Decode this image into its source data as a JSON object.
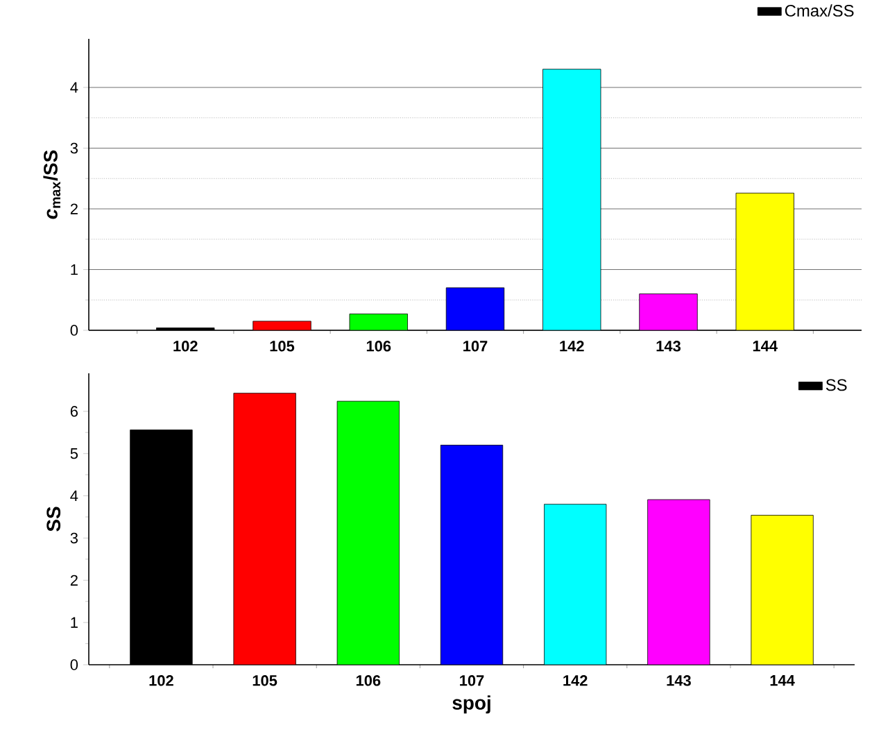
{
  "chart_data": [
    {
      "type": "bar",
      "categories": [
        "102",
        "105",
        "106",
        "107",
        "142",
        "143",
        "144"
      ],
      "ylabel": "*c*$_{max}$/SS",
      "ylim": [
        0,
        4.8
      ],
      "yticks": [
        0,
        1,
        2,
        3,
        4
      ],
      "grid": "y",
      "legend": "top right",
      "series": [
        {
          "name": "Cmax/SS",
          "colors": [
            "#000000",
            "#ff0000",
            "#00ff00",
            "#0000ff",
            "#00ffff",
            "#ff00ff",
            "#ffff00"
          ],
          "values": [
            0.04,
            0.15,
            0.27,
            0.7,
            4.3,
            0.6,
            2.26
          ]
        }
      ]
    },
    {
      "type": "bar",
      "categories": [
        "102",
        "105",
        "106",
        "107",
        "142",
        "143",
        "144"
      ],
      "xlabel": "spoj",
      "ylabel": "SS",
      "ylim": [
        0,
        6.9
      ],
      "yticks": [
        0,
        1,
        2,
        3,
        4,
        5,
        6
      ],
      "legend": "top right",
      "series": [
        {
          "name": "SS",
          "colors": [
            "#000000",
            "#ff0000",
            "#00ff00",
            "#0000ff",
            "#00ffff",
            "#ff00ff",
            "#ffff00"
          ],
          "values": [
            5.56,
            6.43,
            6.24,
            5.2,
            3.8,
            3.91,
            3.54
          ]
        }
      ]
    }
  ]
}
